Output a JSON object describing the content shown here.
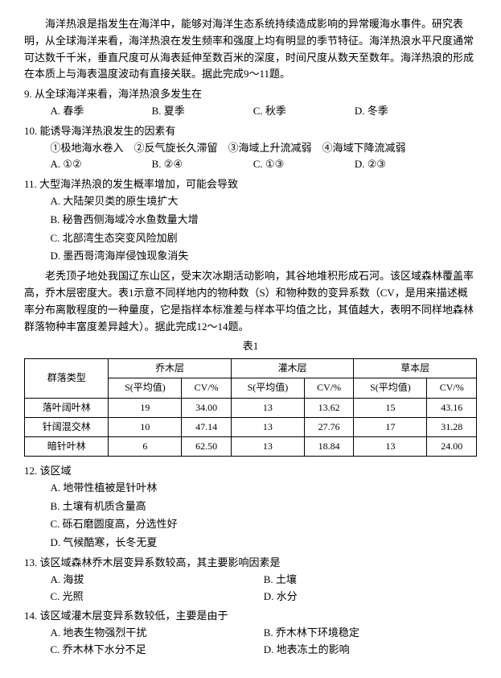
{
  "intro1": "海洋热浪是指发生在海洋中，能够对海洋生态系统持续造成影响的异常暖海水事件。研究表明，从全球海洋来看，海洋热浪在发生频率和强度上均有明显的季节特征。海洋热浪水平尺度通常可达数千千米，垂直尺度可从海表延伸至数百米的深度，时间尺度从数天至数年。海洋热浪的形成在本质上与海表温度波动有直接关联。据此完成9～11题。",
  "q9": {
    "stem": "9. 从全球海洋来看，海洋热浪多发生在",
    "A": "A. 春季",
    "B": "B. 夏季",
    "C": "C. 秋季",
    "D": "D. 冬季"
  },
  "q10": {
    "stem": "10. 能诱导海洋热浪发生的因素有",
    "line1": "①极地海水卷入　②反气旋长久滞留　③海域上升流减弱　④海域下降流减弱",
    "A": "A. ①②",
    "B": "B. ②④",
    "C": "C. ①③",
    "D": "D. ②③"
  },
  "q11": {
    "stem": "11. 大型海洋热浪的发生概率增加，可能会导致",
    "A": "A. 大陆架贝类的原生境扩大",
    "B": "B. 秘鲁西侧海域冷水鱼数量大增",
    "C": "C. 北部湾生态突变风险加剧",
    "D": "D. 墨西哥湾海岸侵蚀现象消失"
  },
  "intro2": "老秃顶子地处我国辽东山区，受末次冰期活动影响，其谷地堆积形成石河。该区域森林覆盖率高，乔木层密度大。表1示意不同样地内的物种数（S）和物种数的变异系数（CV，是用来描述概率分布离散程度的一种量度，它是指样本标准差与样本平均值之比，其值越大，表明不同样地森林群落物种丰富度差异越大）。据此完成12～14题。",
  "table": {
    "caption": "表1",
    "header_group": "群落类型",
    "cols": [
      "乔木层",
      "灌木层",
      "草本层"
    ],
    "sub": [
      "S(平均值)",
      "CV/%"
    ],
    "rows": [
      {
        "name": "落叶阔叶林",
        "v": [
          "19",
          "34.00",
          "13",
          "13.62",
          "15",
          "43.16"
        ]
      },
      {
        "name": "针阔混交林",
        "v": [
          "10",
          "47.14",
          "13",
          "27.76",
          "17",
          "31.28"
        ]
      },
      {
        "name": "暗针叶林",
        "v": [
          "6",
          "62.50",
          "13",
          "18.84",
          "13",
          "24.00"
        ]
      }
    ]
  },
  "q12": {
    "stem": "12. 该区域",
    "A": "A. 地带性植被是针叶林",
    "B": "B. 土壤有机质含量高",
    "C": "C. 砾石磨圆度高，分选性好",
    "D": "D. 气候酷寒，长冬无夏"
  },
  "q13": {
    "stem": "13. 该区域森林乔木层变异系数较高，其主要影响因素是",
    "A": "A. 海拔",
    "B": "B. 土壤",
    "C": "C. 光照",
    "D": "D. 水分"
  },
  "q14": {
    "stem": "14. 该区域灌木层变异系数较低，主要是由于",
    "A": "A. 地表生物强烈干扰",
    "B": "B. 乔木林下环境稳定",
    "C": "C. 乔木林下水分不足",
    "D": "D. 地表冻土的影响"
  }
}
